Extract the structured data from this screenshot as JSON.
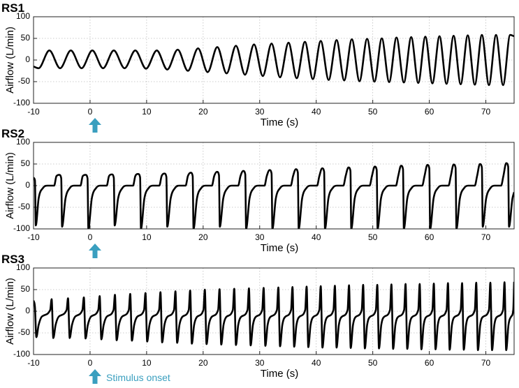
{
  "chart_data": [
    {
      "type": "line",
      "title": "RS1",
      "xlabel": "Time (s)",
      "ylabel": "Airflow (L/min)",
      "xlim": [
        -10,
        75
      ],
      "ylim": [
        -100,
        100
      ],
      "xticks": [
        -10,
        0,
        10,
        20,
        30,
        40,
        50,
        60,
        70
      ],
      "yticks": [
        -100,
        -50,
        0,
        50,
        100
      ],
      "grid": true,
      "color": "#000000",
      "x": [
        -10,
        -9.1,
        -7.2,
        -5.3,
        -3.4,
        -1.5,
        0.4,
        2.3,
        4.2,
        6.1,
        8.0,
        9.9,
        11.8,
        13.65,
        15.5,
        17.3,
        19.1,
        20.8,
        22.5,
        24.15,
        25.8,
        27.4,
        29.0,
        30.55,
        32.1,
        33.6,
        35.1,
        36.55,
        38.0,
        39.4,
        40.8,
        42.2,
        43.6,
        44.95,
        46.3,
        47.65,
        49.0,
        50.3,
        51.6,
        52.9,
        54.2,
        55.5,
        56.8,
        58.05,
        59.3,
        60.55,
        61.8,
        63.05,
        64.3,
        65.55,
        66.8,
        68.05,
        69.3,
        70.55,
        71.8,
        73.05,
        74.3,
        75
      ],
      "values": [
        -15,
        -19,
        22,
        -19,
        22,
        -19,
        22,
        -19,
        22,
        -19,
        22,
        -20,
        22,
        -22,
        24,
        -25,
        27,
        -28,
        30,
        -31,
        33,
        -34,
        36,
        -37,
        38,
        -40,
        40,
        -42,
        42,
        -44,
        44,
        -46,
        46,
        -47,
        48,
        -49,
        49,
        -50,
        50,
        -51,
        52,
        -52,
        53,
        -53,
        54,
        -54,
        55,
        -55,
        56,
        -56,
        57,
        -57,
        58,
        -58,
        58,
        -58,
        58,
        55
      ]
    },
    {
      "type": "line",
      "title": "RS2",
      "xlabel": "Time (s)",
      "ylabel": "Airflow (L/min)",
      "xlim": [
        -10,
        75
      ],
      "ylim": [
        -100,
        100
      ],
      "xticks": [
        -10,
        0,
        10,
        20,
        30,
        40,
        50,
        60,
        70
      ],
      "yticks": [
        -100,
        -50,
        0,
        50,
        100
      ],
      "grid": true,
      "color": "#000000",
      "x": [
        -10,
        -9.75,
        -9.6,
        -9.1,
        -8.3,
        -7.5,
        -6.35,
        -5.95,
        -5.45,
        -5.1,
        -4.95,
        -4.35,
        -3.55,
        -2.85,
        -1.7,
        -1.3,
        -0.8,
        -0.45,
        -0.3,
        0.3,
        1.1,
        1.8,
        2.95,
        3.35,
        3.85,
        4.2,
        4.35,
        4.95,
        5.75,
        6.45,
        7.6,
        8.0,
        8.5,
        8.85,
        9.0,
        9.6,
        10.4,
        11.1,
        12.25,
        12.65,
        13.15,
        13.5,
        13.65,
        14.25,
        15.05,
        15.75,
        16.9,
        17.3,
        17.8,
        18.15,
        18.3,
        18.9,
        19.7,
        20.4,
        21.55,
        21.95,
        22.45,
        22.8,
        22.95,
        23.55,
        24.35,
        25.05,
        26.2,
        26.6,
        27.1,
        27.45,
        27.6,
        28.2,
        29.0,
        29.7,
        30.85,
        31.25,
        31.75,
        32.1,
        32.25,
        32.85,
        33.65,
        34.35,
        35.5,
        35.9,
        36.4,
        36.75,
        36.9,
        37.5,
        38.3,
        39.0,
        40.15,
        40.55,
        41.05,
        41.4,
        41.55,
        42.15,
        42.95,
        43.65,
        44.8,
        45.2,
        45.7,
        46.05,
        46.2,
        46.8,
        47.6,
        48.3,
        49.45,
        49.85,
        50.35,
        50.7,
        50.85,
        51.45,
        52.25,
        52.95,
        54.1,
        54.5,
        55.0,
        55.35,
        55.5,
        56.1,
        56.9,
        57.6,
        58.75,
        59.15,
        59.65,
        60.0,
        60.15,
        60.75,
        61.55,
        62.25,
        63.4,
        63.8,
        64.3,
        64.65,
        64.8,
        65.4,
        66.2,
        66.9,
        68.05,
        68.45,
        68.95,
        69.3,
        69.45,
        70.05,
        70.85,
        71.55,
        72.7,
        73.1,
        73.6,
        73.95,
        74.1,
        74.7,
        75
      ],
      "values": [
        18,
        12,
        -92,
        -30,
        -5,
        0,
        0,
        22,
        25,
        17,
        -95,
        -30,
        -5,
        0,
        0,
        22,
        25,
        17,
        -100,
        -30,
        -5,
        0,
        0,
        22,
        26,
        18,
        -92,
        -30,
        -5,
        0,
        0,
        22,
        27,
        19,
        -100,
        -30,
        -5,
        0,
        0,
        22,
        28,
        20,
        -95,
        -30,
        -5,
        0,
        0,
        22,
        30,
        22,
        -100,
        -30,
        -5,
        0,
        0,
        22,
        32,
        24,
        -95,
        -30,
        -5,
        0,
        0,
        22,
        34,
        26,
        -100,
        -30,
        -5,
        0,
        0,
        22,
        36,
        28,
        -100,
        -30,
        -5,
        0,
        0,
        22,
        38,
        30,
        -100,
        -30,
        -5,
        0,
        0,
        22,
        40,
        32,
        -100,
        -30,
        -5,
        0,
        0,
        22,
        42,
        34,
        -100,
        -30,
        -5,
        0,
        0,
        22,
        44,
        36,
        -100,
        -30,
        -5,
        0,
        0,
        22,
        46,
        38,
        -100,
        -30,
        -5,
        0,
        0,
        22,
        48,
        40,
        -100,
        -30,
        -5,
        0,
        0,
        22,
        49,
        41,
        -100,
        -30,
        -5,
        0,
        0,
        22,
        50,
        42,
        -95,
        -30,
        -5,
        0,
        0,
        22,
        52,
        44,
        -95,
        -30,
        -15
      ]
    },
    {
      "type": "line",
      "title": "RS3",
      "xlabel": "Time (s)",
      "ylabel": "Airflow (L/min)",
      "xlim": [
        -10,
        75
      ],
      "ylim": [
        -100,
        100
      ],
      "xticks": [
        -10,
        0,
        10,
        20,
        30,
        40,
        50,
        60,
        70
      ],
      "yticks": [
        -100,
        -50,
        0,
        50,
        100
      ],
      "grid": true,
      "color": "#000000",
      "annotation": "Stimulus onset",
      "annotation_color": "#3a9fbf",
      "x": [
        -10,
        -9.75,
        -9.5,
        -9.1,
        -8.5,
        -7.05,
        -6.8,
        -6.5,
        -6.1,
        -5.5,
        -4.15,
        -3.9,
        -3.6,
        -3.2,
        -2.6,
        -1.35,
        -1.1,
        -0.8,
        -0.4,
        0.2,
        1.45,
        1.7,
        2.0,
        2.4,
        3.0,
        4.15,
        4.4,
        4.7,
        5.1,
        5.7,
        6.85,
        7.1,
        7.4,
        7.8,
        8.4,
        9.55,
        9.8,
        10.1,
        10.5,
        11.1,
        12.2,
        12.45,
        12.75,
        13.15,
        13.75,
        14.85,
        15.1,
        15.4,
        15.8,
        16.4,
        17.45,
        17.7,
        18.0,
        18.4,
        19.0,
        20.05,
        20.3,
        20.6,
        21.0,
        21.6,
        22.65,
        22.9,
        23.2,
        23.6,
        24.2,
        25.25,
        25.5,
        25.8,
        26.2,
        26.8,
        27.85,
        28.1,
        28.4,
        28.8,
        29.4,
        30.45,
        30.7,
        31.0,
        31.4,
        32.0,
        33.05,
        33.3,
        33.6,
        34.0,
        34.6,
        35.55,
        35.8,
        36.1,
        36.5,
        37.1,
        38.05,
        38.3,
        38.6,
        39.0,
        39.6,
        40.55,
        40.8,
        41.1,
        41.5,
        42.1,
        43.05,
        43.3,
        43.6,
        44.0,
        44.6,
        45.55,
        45.8,
        46.1,
        46.5,
        47.1,
        48.05,
        48.3,
        48.6,
        49.0,
        49.6,
        50.55,
        50.8,
        51.1,
        51.5,
        52.1,
        53.05,
        53.3,
        53.6,
        54.0,
        54.6,
        55.55,
        55.8,
        56.1,
        56.5,
        57.1,
        58.05,
        58.3,
        58.6,
        59.0,
        59.6,
        60.55,
        60.8,
        61.1,
        61.5,
        62.1,
        63.05,
        63.3,
        63.6,
        64.0,
        64.6,
        65.55,
        65.8,
        66.1,
        66.5,
        67.1,
        68.05,
        68.3,
        68.6,
        69.0,
        69.6,
        70.55,
        70.8,
        71.1,
        71.5,
        72.1,
        73.05,
        73.3,
        73.6,
        74.0,
        74.5,
        74.85,
        75.0
      ],
      "values": [
        25,
        10,
        -60,
        -32,
        -12,
        3,
        28,
        -62,
        -32,
        -12,
        3,
        30,
        -62,
        -32,
        -12,
        3,
        32,
        -63,
        -32,
        -12,
        3,
        35,
        -65,
        -32,
        -12,
        3,
        38,
        -67,
        -32,
        -12,
        3,
        40,
        -68,
        -32,
        -12,
        3,
        42,
        -70,
        -32,
        -12,
        3,
        44,
        -72,
        -32,
        -12,
        3,
        46,
        -73,
        -32,
        -12,
        3,
        48,
        -75,
        -32,
        -12,
        3,
        50,
        -76,
        -32,
        -12,
        3,
        51,
        -77,
        -32,
        -12,
        3,
        52,
        -78,
        -32,
        -12,
        3,
        53,
        -79,
        -32,
        -12,
        3,
        54,
        -80,
        -32,
        -12,
        3,
        55,
        -81,
        -32,
        -12,
        3,
        56,
        -82,
        -32,
        -12,
        3,
        57,
        -83,
        -32,
        -12,
        3,
        58,
        -84,
        -32,
        -12,
        3,
        59,
        -84,
        -32,
        -12,
        3,
        60,
        -85,
        -32,
        -12,
        3,
        61,
        -86,
        -32,
        -12,
        3,
        61,
        -86,
        -32,
        -12,
        3,
        62,
        -87,
        -32,
        -12,
        3,
        63,
        -87,
        -32,
        -12,
        3,
        63,
        -88,
        -32,
        -12,
        3,
        64,
        -88,
        -32,
        -12,
        3,
        65,
        -89,
        -32,
        -12,
        3,
        65,
        -89,
        -32,
        -12,
        3,
        66,
        -90,
        -32,
        -12,
        3,
        66,
        -90,
        -32,
        -12,
        3,
        67,
        -90,
        -32,
        -12,
        3,
        68
      ]
    }
  ]
}
